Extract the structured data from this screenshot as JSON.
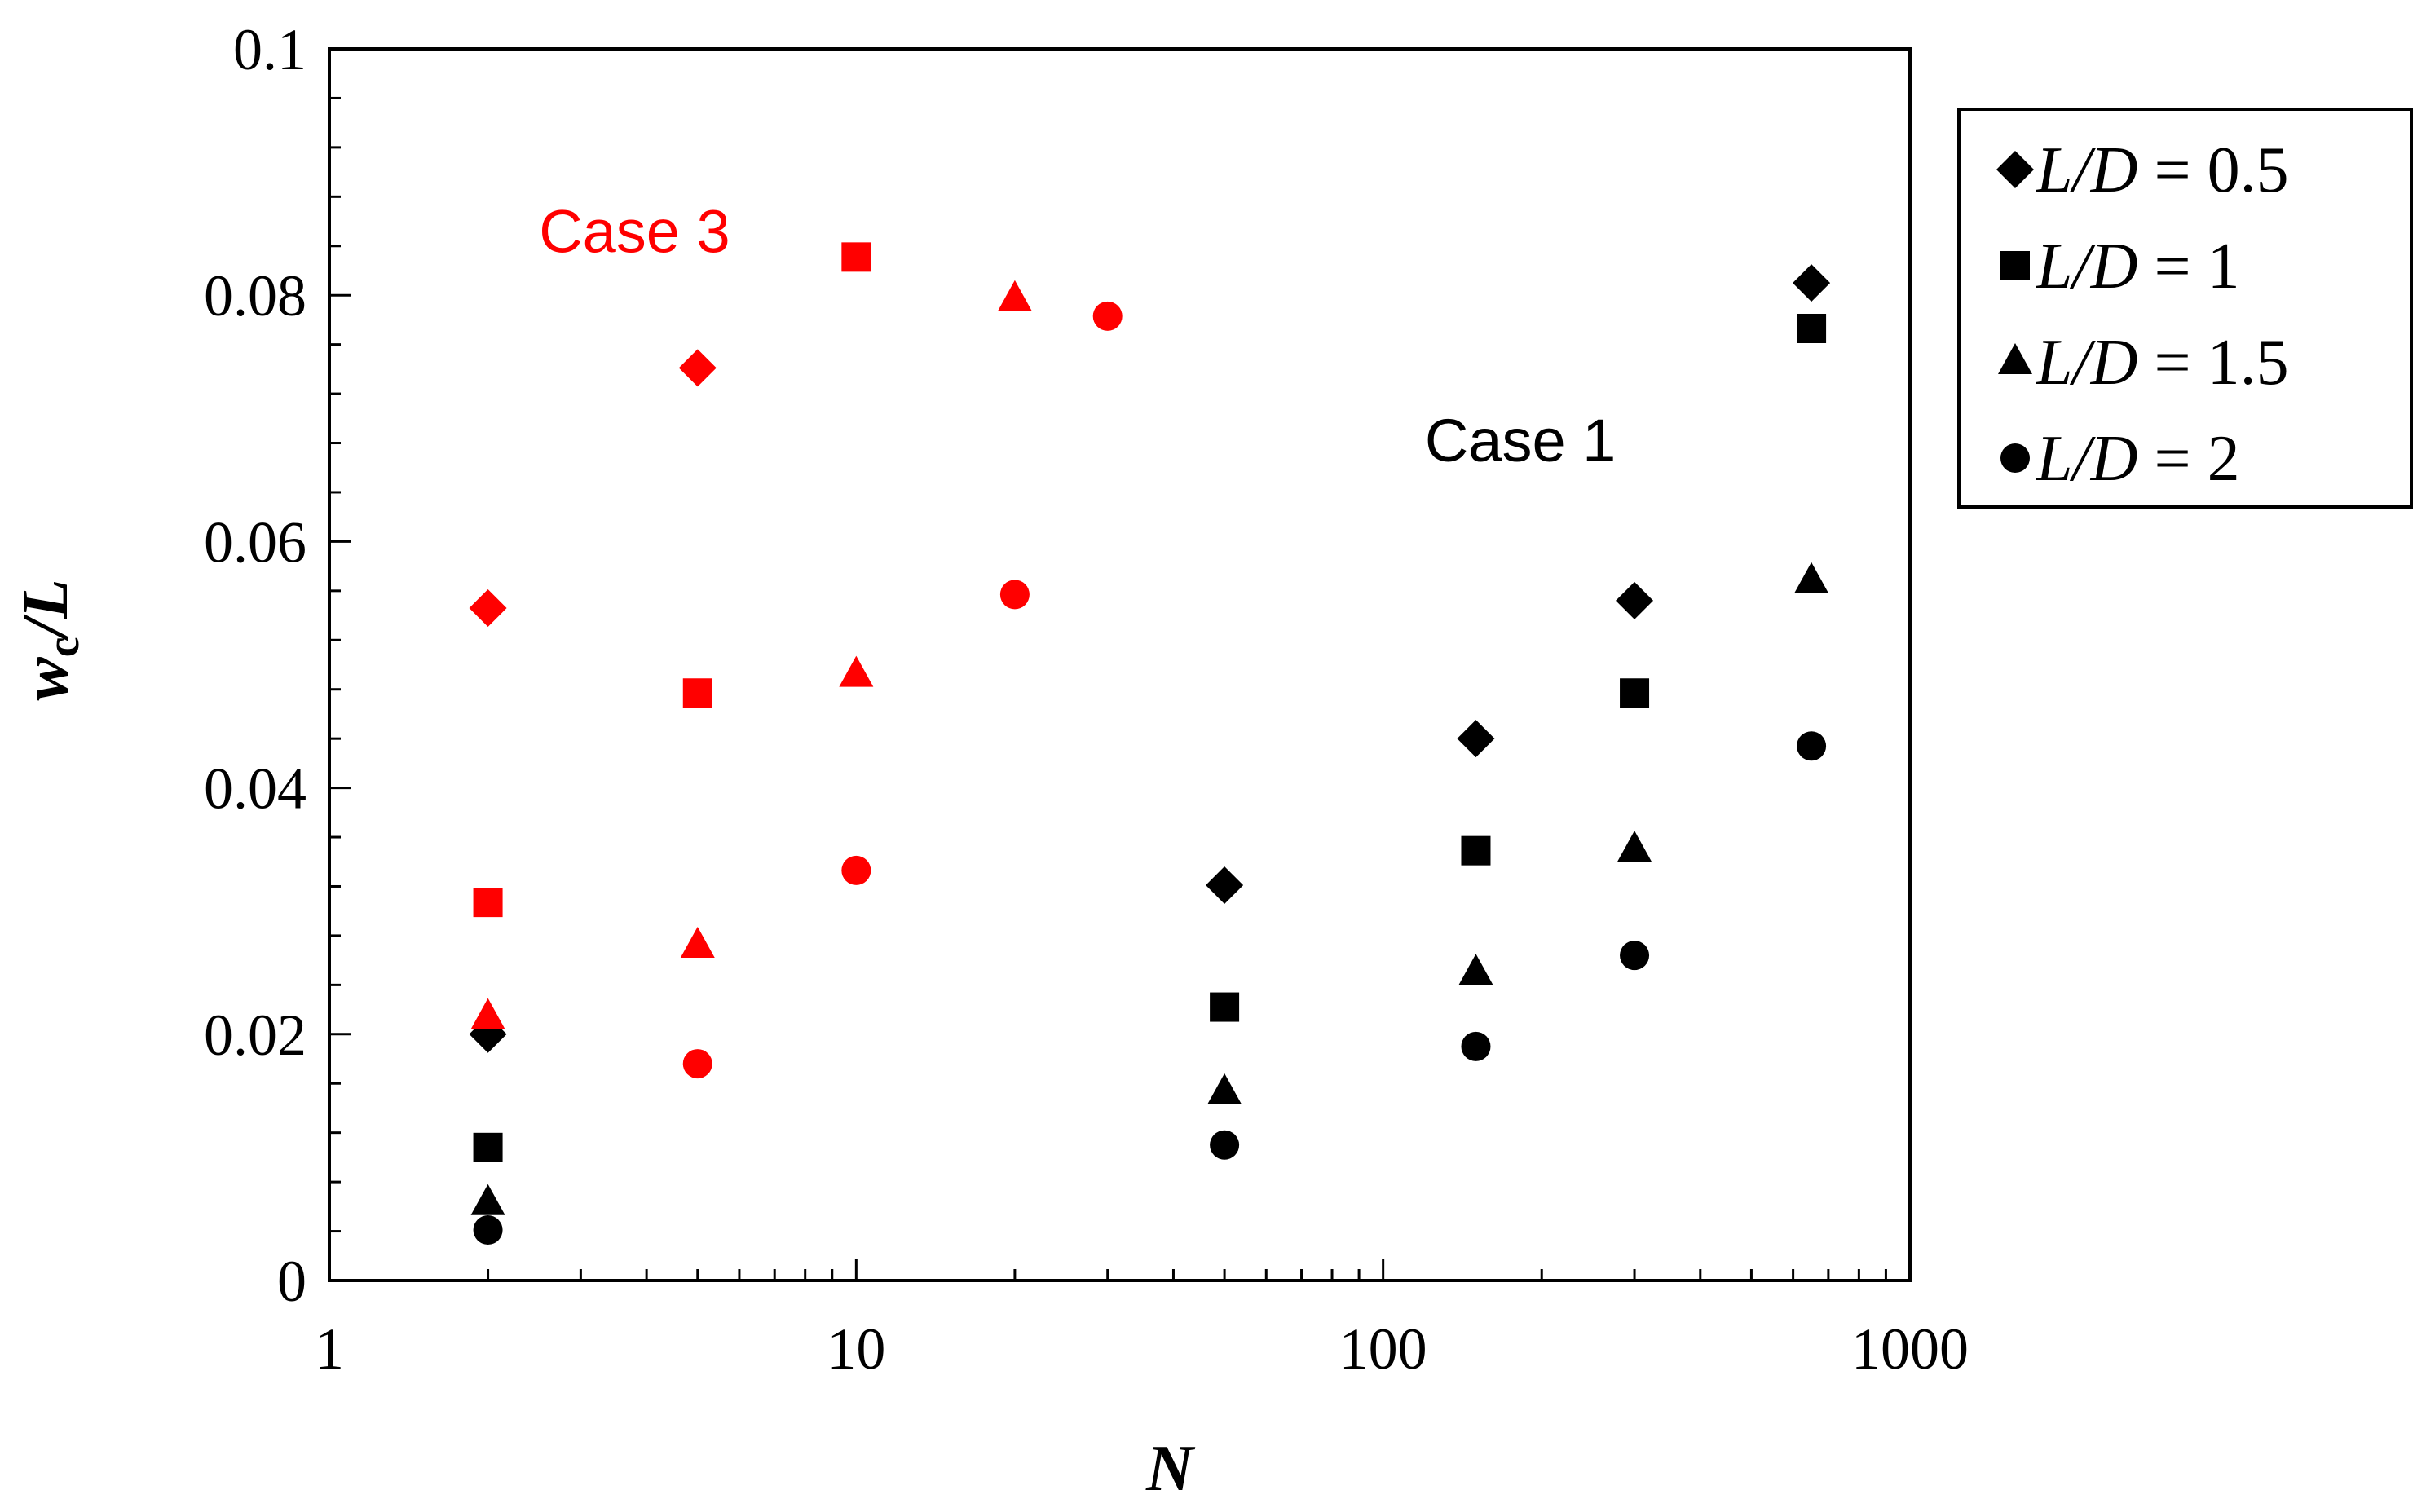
{
  "chart_data": {
    "type": "scatter",
    "title": "",
    "xlabel": "N",
    "ylabel_main": "w",
    "ylabel_sub": "c",
    "ylabel_tail": "/L",
    "xscale": "log",
    "xlim": [
      1,
      1000
    ],
    "ylim": [
      0,
      0.1
    ],
    "x_ticks": [
      {
        "value": 1,
        "label": "1"
      },
      {
        "value": 10,
        "label": "10"
      },
      {
        "value": 100,
        "label": "100"
      },
      {
        "value": 1000,
        "label": "1000"
      }
    ],
    "y_ticks": [
      {
        "value": 0,
        "label": "0"
      },
      {
        "value": 0.02,
        "label": "0.02"
      },
      {
        "value": 0.04,
        "label": "0.04"
      },
      {
        "value": 0.06,
        "label": "0.06"
      },
      {
        "value": 0.08,
        "label": "0.08"
      },
      {
        "value": 0.1,
        "label": "0.1"
      }
    ],
    "grid": false,
    "legend_position": "outside-right-top",
    "legend": [
      {
        "marker": "diamond",
        "prefix": "L/D",
        "value_text": " = 0.5"
      },
      {
        "marker": "square",
        "prefix": "L/D",
        "value_text": " = 1"
      },
      {
        "marker": "triangle",
        "prefix": "L/D",
        "value_text": " = 1.5"
      },
      {
        "marker": "circle",
        "prefix": "L/D",
        "value_text": " = 2"
      }
    ],
    "annotations": [
      {
        "text": "Case 3",
        "color": "#ff0000",
        "x": 2.5,
        "y": 0.0835
      },
      {
        "text": "Case 1",
        "color": "#000000",
        "x": 120,
        "y": 0.0665
      }
    ],
    "series": [
      {
        "group": "Case 1",
        "marker": "diamond",
        "color": "#000000",
        "x": [
          2,
          50,
          150,
          300,
          650
        ],
        "y": [
          0.02,
          0.0321,
          0.044,
          0.0552,
          0.081
        ]
      },
      {
        "group": "Case 1",
        "marker": "square",
        "color": "#000000",
        "x": [
          2,
          50,
          150,
          300,
          650
        ],
        "y": [
          0.0108,
          0.0222,
          0.0349,
          0.0477,
          0.0773
        ]
      },
      {
        "group": "Case 1",
        "marker": "triangle",
        "color": "#000000",
        "x": [
          2,
          50,
          150,
          300,
          650
        ],
        "y": [
          0.0063,
          0.0153,
          0.025,
          0.035,
          0.0568
        ]
      },
      {
        "group": "Case 1",
        "marker": "circle",
        "color": "#000000",
        "x": [
          2,
          50,
          150,
          300,
          650
        ],
        "y": [
          0.0041,
          0.011,
          0.019,
          0.0264,
          0.0434
        ]
      },
      {
        "group": "Case 3",
        "marker": "diamond",
        "color": "#ff0000",
        "x": [
          2,
          5
        ],
        "y": [
          0.0546,
          0.0741
        ]
      },
      {
        "group": "Case 3",
        "marker": "square",
        "color": "#ff0000",
        "x": [
          2,
          5,
          10
        ],
        "y": [
          0.0307,
          0.0477,
          0.0831
        ]
      },
      {
        "group": "Case 3",
        "marker": "triangle",
        "color": "#ff0000",
        "x": [
          2,
          5,
          10,
          20
        ],
        "y": [
          0.0214,
          0.0272,
          0.0492,
          0.0797
        ]
      },
      {
        "group": "Case 3",
        "marker": "circle",
        "color": "#ff0000",
        "x": [
          5,
          10,
          20,
          30
        ],
        "y": [
          0.0176,
          0.0333,
          0.0557,
          0.0783
        ]
      }
    ]
  }
}
